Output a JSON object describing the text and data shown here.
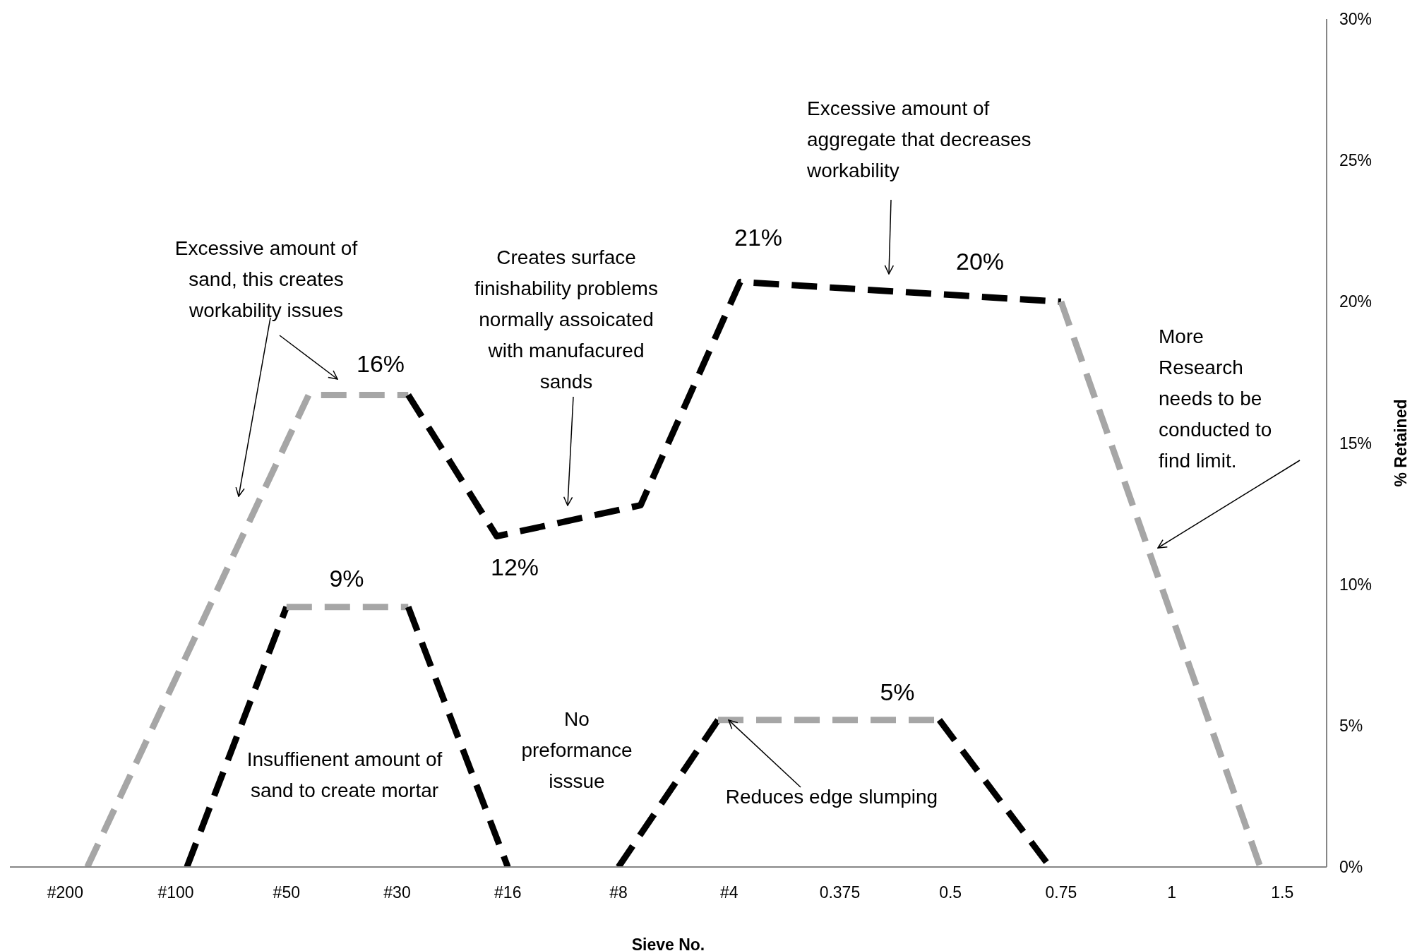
{
  "chart_data": {
    "type": "line",
    "xlabel": "Sieve No.",
    "ylabel": "% Retained",
    "line_style": "dashed",
    "categories": [
      null,
      null,
      null,
      null,
      null,
      "#200",
      null,
      null,
      null,
      null,
      null,
      null,
      null,
      null,
      null,
      "#100",
      null,
      null,
      null,
      null,
      null,
      null,
      null,
      null,
      null,
      "#50",
      null,
      null,
      null,
      null,
      null,
      null,
      null,
      null,
      null,
      "#30",
      null,
      null,
      null,
      null,
      null,
      null,
      null,
      null,
      null,
      "#16",
      null,
      null,
      null,
      null,
      null,
      null,
      null,
      null,
      null,
      "#8",
      null,
      null,
      null,
      null,
      null,
      null,
      null,
      null,
      null,
      "#4",
      null,
      null,
      null,
      null,
      null,
      null,
      null,
      null,
      null,
      "0.375",
      null,
      null,
      null,
      null,
      null,
      null,
      null,
      null,
      null,
      "0.5",
      null,
      null,
      null,
      null,
      null,
      null,
      null,
      null,
      null,
      "0.75",
      null,
      null,
      null,
      null,
      null,
      null,
      null,
      null,
      null,
      "1",
      null,
      null,
      null,
      null,
      null,
      null,
      null,
      null,
      null,
      "1.5",
      null,
      null,
      null,
      null
    ],
    "ylim": [
      0,
      30
    ],
    "yticks": [
      {
        "value": 0,
        "label": "0%"
      },
      {
        "value": 5,
        "label": "5%"
      },
      {
        "value": 10,
        "label": "10%"
      },
      {
        "value": 15,
        "label": "15%"
      },
      {
        "value": 20,
        "label": "20%"
      },
      {
        "value": 25,
        "label": "25%"
      },
      {
        "value": 30,
        "label": "30%"
      }
    ],
    "series": [
      {
        "color": "#a6a6a6",
        "values": [
          null,
          null,
          null,
          null,
          null,
          null,
          null,
          0,
          null,
          null,
          null,
          null,
          null,
          null,
          null,
          null,
          null,
          null,
          null,
          null,
          null,
          null,
          null,
          null,
          null,
          null,
          null,
          16.7,
          null,
          null,
          null,
          null,
          null,
          null,
          null,
          null,
          16.7,
          null,
          null,
          null,
          null,
          null,
          null,
          null,
          null,
          null,
          null,
          null,
          null,
          null,
          null,
          null,
          null,
          null,
          null,
          null,
          null,
          null,
          null,
          null,
          null,
          null,
          null,
          null,
          null,
          null,
          null,
          null,
          null,
          null,
          null,
          null,
          null,
          null,
          null,
          null,
          null,
          null,
          null,
          null,
          null,
          null,
          null,
          null,
          null,
          null,
          null,
          null,
          null,
          null,
          null,
          null,
          null,
          null,
          null,
          null,
          null,
          null,
          null,
          null,
          null,
          null,
          null,
          null,
          null,
          null,
          null,
          null,
          null,
          null,
          null,
          null,
          null,
          null,
          null,
          null,
          null,
          null,
          null,
          null
        ]
      },
      {
        "color": "#000000",
        "values": [
          null,
          null,
          null,
          null,
          null,
          null,
          null,
          null,
          null,
          null,
          null,
          null,
          null,
          null,
          null,
          null,
          null,
          null,
          null,
          null,
          null,
          null,
          null,
          null,
          null,
          null,
          null,
          null,
          null,
          null,
          null,
          null,
          null,
          null,
          null,
          null,
          16.7,
          null,
          null,
          null,
          null,
          null,
          null,
          null,
          11.7,
          null,
          null,
          null,
          null,
          null,
          null,
          null,
          null,
          null,
          null,
          null,
          null,
          12.8,
          null,
          null,
          null,
          null,
          null,
          null,
          null,
          null,
          20.7,
          null,
          null,
          null,
          null,
          null,
          null,
          null,
          null,
          null,
          null,
          null,
          null,
          null,
          null,
          null,
          null,
          null,
          null,
          null,
          null,
          null,
          null,
          null,
          null,
          null,
          null,
          null,
          null,
          20.0,
          null,
          null,
          null,
          null,
          null,
          null,
          null,
          null,
          null,
          null,
          null,
          null,
          null,
          null,
          null,
          null,
          null,
          null,
          null,
          null,
          null,
          null,
          null,
          null
        ]
      },
      {
        "color": "#a6a6a6",
        "values": [
          null,
          null,
          null,
          null,
          null,
          null,
          null,
          null,
          null,
          null,
          null,
          null,
          null,
          null,
          null,
          null,
          null,
          null,
          null,
          null,
          null,
          null,
          null,
          null,
          null,
          null,
          null,
          null,
          null,
          null,
          null,
          null,
          null,
          null,
          null,
          null,
          null,
          null,
          null,
          null,
          null,
          null,
          null,
          null,
          null,
          null,
          null,
          null,
          null,
          null,
          null,
          null,
          null,
          null,
          null,
          null,
          null,
          null,
          null,
          null,
          null,
          null,
          null,
          null,
          null,
          null,
          null,
          null,
          null,
          null,
          null,
          null,
          null,
          null,
          null,
          null,
          null,
          null,
          null,
          null,
          null,
          null,
          null,
          null,
          null,
          null,
          null,
          null,
          null,
          null,
          null,
          null,
          null,
          null,
          null,
          20.0,
          null,
          null,
          null,
          null,
          null,
          null,
          null,
          null,
          null,
          null,
          null,
          null,
          null,
          null,
          null,
          null,
          null,
          0,
          null,
          null,
          null,
          null,
          null,
          null
        ]
      },
      {
        "color": "#000000",
        "values": [
          null,
          null,
          null,
          null,
          null,
          null,
          null,
          null,
          null,
          null,
          null,
          null,
          null,
          null,
          null,
          null,
          0,
          null,
          null,
          null,
          null,
          null,
          null,
          null,
          null,
          9.2,
          null,
          null,
          null,
          null,
          null,
          null,
          null,
          null,
          null,
          null,
          null,
          null,
          null,
          null,
          null,
          null,
          null,
          null,
          null,
          null,
          null,
          null,
          null,
          null,
          null,
          null,
          null,
          null,
          null,
          null,
          null,
          null,
          null,
          null,
          null,
          null,
          null,
          null,
          null,
          null,
          null,
          null,
          null,
          null,
          null,
          null,
          null,
          null,
          null,
          null,
          null,
          null,
          null,
          null,
          null,
          null,
          null,
          null,
          null,
          null,
          null,
          null,
          null,
          null,
          null,
          null,
          null,
          null,
          null,
          null,
          null,
          null,
          null,
          null,
          null,
          null,
          null,
          null,
          null,
          null,
          null,
          null,
          null,
          null,
          null,
          null,
          null,
          null,
          null,
          null,
          null,
          null,
          null,
          null
        ]
      },
      {
        "color": "#a6a6a6",
        "values": [
          null,
          null,
          null,
          null,
          null,
          null,
          null,
          null,
          null,
          null,
          null,
          null,
          null,
          null,
          null,
          null,
          null,
          null,
          null,
          null,
          null,
          null,
          null,
          null,
          null,
          9.2,
          null,
          null,
          null,
          null,
          null,
          null,
          null,
          null,
          null,
          null,
          9.2,
          null,
          null,
          null,
          null,
          null,
          null,
          null,
          null,
          null,
          null,
          null,
          null,
          null,
          null,
          null,
          null,
          null,
          null,
          null,
          null,
          null,
          null,
          null,
          null,
          null,
          null,
          null,
          null,
          null,
          null,
          null,
          null,
          null,
          null,
          null,
          null,
          null,
          null,
          null,
          null,
          null,
          null,
          null,
          null,
          null,
          null,
          null,
          null,
          null,
          null,
          null,
          null,
          null,
          null,
          null,
          null,
          null,
          null,
          null,
          null,
          null,
          null,
          null,
          null,
          null,
          null,
          null,
          null,
          null,
          null,
          null,
          null,
          null,
          null,
          null,
          null,
          null,
          null,
          null,
          null,
          null,
          null,
          null
        ]
      },
      {
        "color": "#000000",
        "values": [
          null,
          null,
          null,
          null,
          null,
          null,
          null,
          null,
          null,
          null,
          null,
          null,
          null,
          null,
          null,
          null,
          null,
          null,
          null,
          null,
          null,
          null,
          null,
          null,
          null,
          null,
          null,
          null,
          null,
          null,
          null,
          null,
          null,
          null,
          null,
          null,
          9.2,
          null,
          null,
          null,
          null,
          null,
          null,
          null,
          null,
          0,
          null,
          null,
          null,
          null,
          null,
          null,
          null,
          null,
          null,
          null,
          null,
          null,
          null,
          null,
          null,
          null,
          null,
          null,
          null,
          null,
          null,
          null,
          null,
          null,
          null,
          null,
          null,
          null,
          null,
          null,
          null,
          null,
          null,
          null,
          null,
          null,
          null,
          null,
          null,
          null,
          null,
          null,
          null,
          null,
          null,
          null,
          null,
          null,
          null,
          null,
          null,
          null,
          null,
          null,
          null,
          null,
          null,
          null,
          null,
          null,
          null,
          null,
          null,
          null,
          null,
          null,
          null,
          null,
          null,
          null,
          null,
          null,
          null,
          null
        ]
      },
      {
        "color": "#000000",
        "values": [
          null,
          null,
          null,
          null,
          null,
          null,
          null,
          null,
          null,
          null,
          null,
          null,
          null,
          null,
          null,
          null,
          null,
          null,
          null,
          null,
          null,
          null,
          null,
          null,
          null,
          null,
          null,
          null,
          null,
          null,
          null,
          null,
          null,
          null,
          null,
          null,
          null,
          null,
          null,
          null,
          null,
          null,
          null,
          null,
          null,
          null,
          null,
          null,
          null,
          null,
          null,
          null,
          null,
          null,
          null,
          0,
          null,
          null,
          null,
          null,
          null,
          null,
          null,
          null,
          5.2,
          null,
          null,
          null,
          null,
          null,
          null,
          null,
          null,
          null,
          null,
          null,
          null,
          null,
          null,
          null,
          null,
          null,
          null,
          null,
          null,
          null,
          null,
          null,
          null,
          null,
          null,
          null,
          null,
          null,
          null,
          null,
          null,
          null,
          null,
          null,
          null,
          null,
          null,
          null,
          null,
          null,
          null,
          null,
          null,
          null,
          null,
          null,
          null,
          null,
          null,
          null,
          null,
          null,
          null,
          null
        ]
      },
      {
        "color": "#a6a6a6",
        "values": [
          null,
          null,
          null,
          null,
          null,
          null,
          null,
          null,
          null,
          null,
          null,
          null,
          null,
          null,
          null,
          null,
          null,
          null,
          null,
          null,
          null,
          null,
          null,
          null,
          null,
          null,
          null,
          null,
          null,
          null,
          null,
          null,
          null,
          null,
          null,
          null,
          null,
          null,
          null,
          null,
          null,
          null,
          null,
          null,
          null,
          null,
          null,
          null,
          null,
          null,
          null,
          null,
          null,
          null,
          null,
          null,
          null,
          null,
          null,
          null,
          null,
          null,
          null,
          null,
          5.2,
          null,
          null,
          null,
          null,
          null,
          null,
          null,
          null,
          null,
          null,
          null,
          null,
          null,
          null,
          null,
          null,
          null,
          null,
          null,
          5.2,
          null,
          null,
          null,
          null,
          null,
          null,
          null,
          null,
          null,
          null,
          null,
          null,
          null,
          null,
          null,
          null,
          null,
          null,
          null,
          null,
          null,
          null,
          null,
          null,
          null,
          null,
          null,
          null,
          null,
          null,
          null,
          null,
          null,
          null,
          null
        ]
      },
      {
        "color": "#000000",
        "values": [
          null,
          null,
          null,
          null,
          null,
          null,
          null,
          null,
          null,
          null,
          null,
          null,
          null,
          null,
          null,
          null,
          null,
          null,
          null,
          null,
          null,
          null,
          null,
          null,
          null,
          null,
          null,
          null,
          null,
          null,
          null,
          null,
          null,
          null,
          null,
          null,
          null,
          null,
          null,
          null,
          null,
          null,
          null,
          null,
          null,
          null,
          null,
          null,
          null,
          null,
          null,
          null,
          null,
          null,
          null,
          null,
          null,
          null,
          null,
          null,
          null,
          null,
          null,
          null,
          null,
          null,
          null,
          null,
          null,
          null,
          null,
          null,
          null,
          null,
          null,
          null,
          null,
          null,
          null,
          null,
          null,
          null,
          null,
          null,
          5.2,
          null,
          null,
          null,
          null,
          null,
          null,
          null,
          null,
          null,
          0,
          null,
          null,
          null,
          null,
          null,
          null,
          null,
          null,
          null,
          null,
          null,
          null,
          null,
          null,
          null,
          null,
          null,
          null,
          null,
          null,
          null,
          null,
          null,
          null,
          null
        ]
      }
    ],
    "annotations": [
      {
        "text": "16%",
        "y": 16.7
      },
      {
        "text": "12%",
        "y": 11.7
      },
      {
        "text": "21%",
        "y": 20.7
      },
      {
        "text": "20%",
        "y": 20.1
      },
      {
        "text": "9%",
        "y": 9.2
      },
      {
        "text": "5%",
        "y": 5.2
      },
      "Excessive amount of sand, this creates workability issues",
      "Creates surface finishability problems normally assoicated with manufacured sands",
      "Excessive amount of aggregate that decreases workability",
      "More Research needs to be conducted to find limit.",
      "No preformance isssue",
      "Insuffienent amount of sand to create mortar",
      {
        "text": "Reduces edge slumping",
        "x": "#4",
        "y": 5.2
      }
    ]
  }
}
